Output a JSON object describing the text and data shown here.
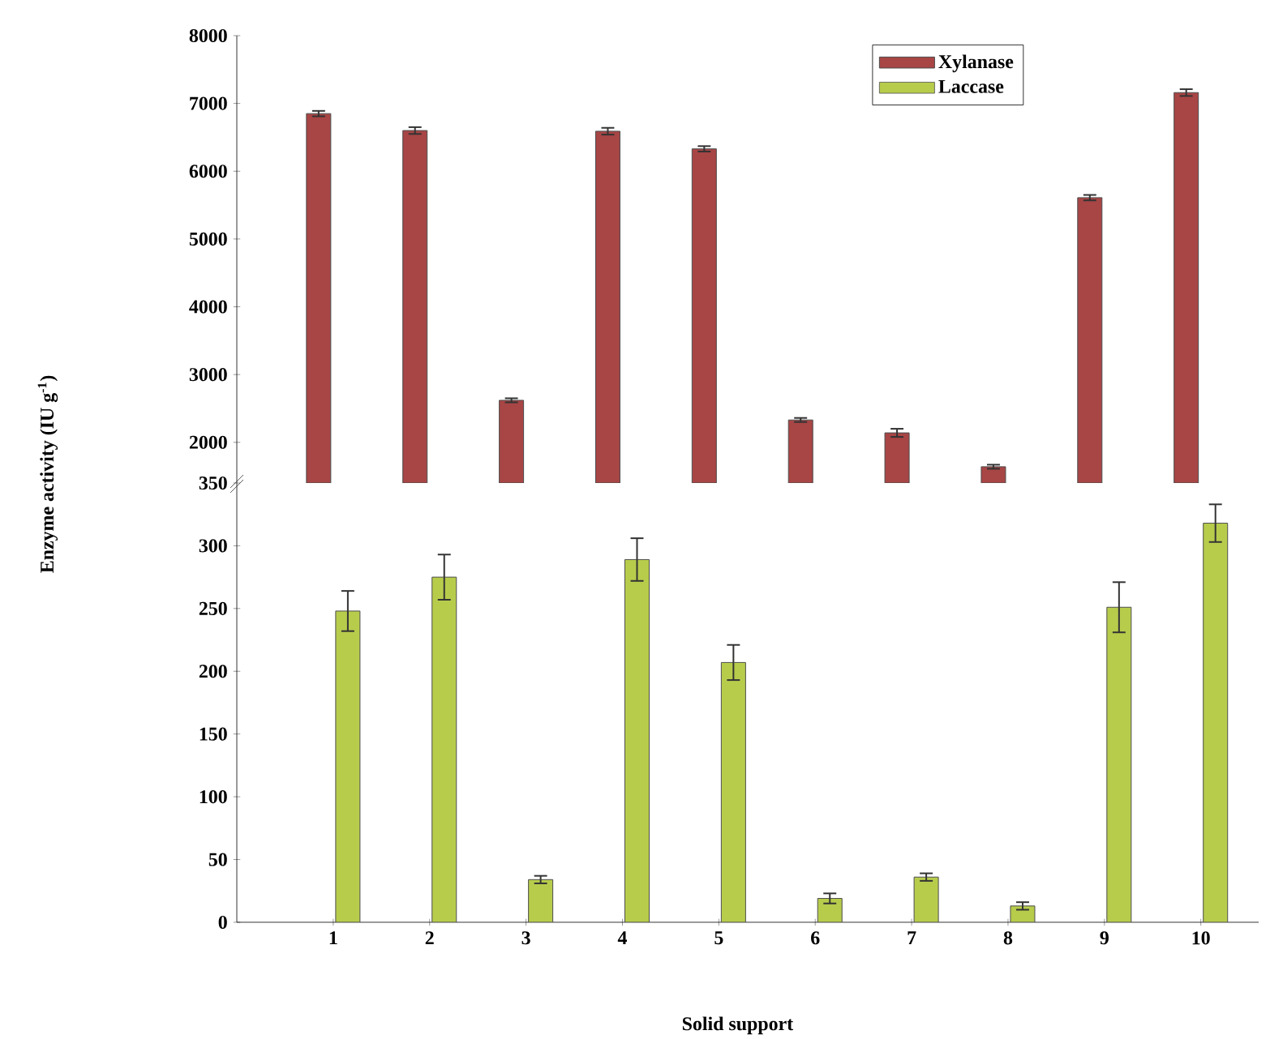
{
  "chart_data": [
    {
      "type": "bar",
      "ylabel": "Enzyme activity (IU g$^{-1}$)",
      "ylim": [
        1400,
        8000
      ],
      "yticks": [
        2000,
        3000,
        4000,
        5000,
        6000,
        7000,
        8000
      ],
      "tick_labels": "y",
      "legend": "top right",
      "categories": [
        "1",
        "2",
        "3",
        "4",
        "5",
        "6",
        "7",
        "8",
        "9",
        "10"
      ],
      "series": [
        {
          "name": "Xylanase",
          "color": "#a84545",
          "values": [
            6850,
            6600,
            2620,
            6590,
            6330,
            2330,
            2140,
            1640,
            5610,
            7160
          ],
          "errors": [
            40,
            50,
            30,
            50,
            40,
            30,
            60,
            30,
            40,
            50
          ]
        },
        {
          "name": "Laccase",
          "color": "#b8cc4c",
          "values": [
            null,
            null,
            null,
            null,
            null,
            null,
            null,
            null,
            null,
            null
          ]
        }
      ]
    },
    {
      "type": "bar",
      "xlabel": "Solid support",
      "ylim": [
        0,
        350
      ],
      "yticks": [
        0,
        50,
        100,
        150,
        200,
        250,
        300,
        350
      ],
      "legend": false,
      "categories": [
        "1",
        "2",
        "3",
        "4",
        "5",
        "6",
        "7",
        "8",
        "9",
        "10"
      ],
      "series": [
        {
          "color": "#a84545",
          "values": [
            null,
            null,
            null,
            null,
            null,
            null,
            null,
            null,
            null,
            null
          ]
        },
        {
          "color": "#b8cc4c",
          "values": [
            248,
            275,
            34,
            289,
            207,
            19,
            36,
            13,
            251,
            318
          ],
          "errors": [
            16,
            18,
            3,
            17,
            14,
            4,
            3,
            3,
            20,
            15
          ]
        }
      ]
    }
  ]
}
